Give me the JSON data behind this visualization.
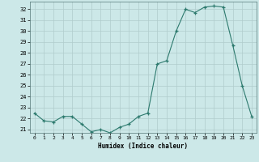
{
  "x": [
    0,
    1,
    2,
    3,
    4,
    5,
    6,
    7,
    8,
    9,
    10,
    11,
    12,
    13,
    14,
    15,
    16,
    17,
    18,
    19,
    20,
    21,
    22,
    23
  ],
  "y": [
    22.5,
    21.8,
    21.7,
    22.2,
    22.2,
    21.5,
    20.8,
    21.0,
    20.7,
    21.2,
    21.5,
    22.2,
    22.5,
    27.0,
    27.3,
    30.0,
    32.0,
    31.7,
    32.2,
    32.3,
    32.2,
    28.7,
    25.0,
    22.2
  ],
  "line_color": "#2d7a6e",
  "marker_color": "#2d7a6e",
  "bg_color": "#cce8e8",
  "grid_color": "#b0cccc",
  "xlabel": "Humidex (Indice chaleur)",
  "ylim_min": 20.7,
  "ylim_max": 32.7,
  "xlim_min": -0.5,
  "xlim_max": 23.5,
  "yticks": [
    21,
    22,
    23,
    24,
    25,
    26,
    27,
    28,
    29,
    30,
    31,
    32
  ],
  "xticks": [
    0,
    1,
    2,
    3,
    4,
    5,
    6,
    7,
    8,
    9,
    10,
    11,
    12,
    13,
    14,
    15,
    16,
    17,
    18,
    19,
    20,
    21,
    22,
    23
  ]
}
